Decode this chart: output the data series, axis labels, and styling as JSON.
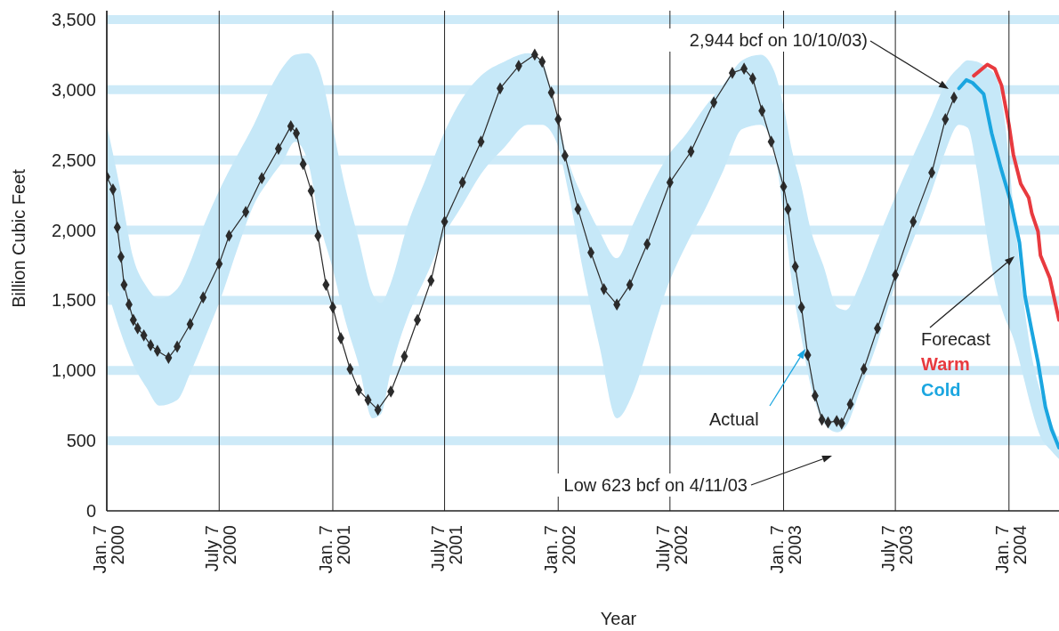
{
  "chart_data": {
    "type": "line",
    "xlabel": "Year",
    "ylabel": "Billion Cubic Feet",
    "xlim": [
      "2000-01-07",
      "2004-03-28"
    ],
    "ylim": [
      0,
      3500
    ],
    "xticks": [
      {
        "value": "2000-01-07",
        "label": "Jan. 7\n2000"
      },
      {
        "value": "2000-07-07",
        "label": "July 7\n2000"
      },
      {
        "value": "2001-01-07",
        "label": "Jan. 7\n2001"
      },
      {
        "value": "2001-07-07",
        "label": "July 7\n2001"
      },
      {
        "value": "2002-01-07",
        "label": "Jan. 7\n2002"
      },
      {
        "value": "2002-07-07",
        "label": "July 7\n2002"
      },
      {
        "value": "2003-01-07",
        "label": "Jan. 7\n2003"
      },
      {
        "value": "2003-07-07",
        "label": "July 7\n2003"
      },
      {
        "value": "2004-01-07",
        "label": "Jan. 7\n2004"
      }
    ],
    "yticks": [
      0,
      500,
      {
        "value": 1000,
        "label": "1,000"
      },
      {
        "value": 1500,
        "label": "1,500"
      },
      {
        "value": 2000,
        "label": "2,000"
      },
      {
        "value": 2500,
        "label": "2,500"
      },
      {
        "value": 3000,
        "label": "3,000"
      },
      {
        "value": 3500,
        "label": "3,500"
      }
    ],
    "grid": true,
    "series": [
      {
        "color": "#c6e8f8",
        "values": [
          null,
          null,
          null,
          null,
          null,
          null,
          null,
          null,
          null,
          null,
          null,
          null,
          null,
          null,
          null,
          null,
          null,
          null,
          null,
          null,
          null,
          null,
          null,
          null,
          null,
          null,
          null,
          null,
          null,
          null,
          null,
          null,
          null,
          null,
          null,
          null,
          null,
          null,
          null,
          null,
          null,
          null,
          null,
          null,
          null,
          null,
          null,
          null,
          null,
          null,
          null,
          null,
          null,
          null,
          null,
          null,
          null,
          null,
          null,
          null,
          null,
          null,
          null,
          null,
          null,
          null,
          null,
          null,
          null
        ],
        "x": [
          "2000-01-07",
          "2000-01-28",
          "2000-02-19",
          "2000-03-11",
          "2000-04-01",
          "2000-04-30",
          "2000-05-21",
          "2000-06-11",
          "2000-07-10",
          "2000-08-05",
          "2000-09-01",
          "2000-09-28",
          "2000-10-18",
          "2000-11-07",
          "2000-11-27",
          "2000-12-17",
          "2001-01-06",
          "2001-01-27",
          "2001-02-18",
          "2001-03-12",
          "2001-03-26",
          "2001-04-10",
          "2001-05-09",
          "2001-06-07",
          "2001-07-06",
          "2001-08-05",
          "2001-09-04",
          "2001-10-12",
          "2001-11-19",
          "2001-12-12",
          "2002-01-04",
          "2002-01-25",
          "2002-02-15",
          "2002-03-15",
          "2002-04-12",
          "2002-05-09",
          "2002-06-06",
          "2002-07-04",
          "2002-08-03",
          "2002-09-02",
          "2002-10-02",
          "2002-11-01",
          "2002-12-01",
          "2002-12-23",
          "2003-01-07",
          "2003-01-21",
          "2003-02-05",
          "2003-02-19",
          "2003-03-13",
          "2003-04-04",
          "2003-04-18",
          "2003-05-10",
          "2003-06-08",
          "2003-07-07",
          "2003-08-05",
          "2003-09-04",
          "2003-09-26",
          "2003-10-18",
          "2003-11-01",
          "2003-11-16",
          "2003-12-01",
          "2003-12-16",
          "2003-12-30",
          "2004-01-14",
          "2004-01-29",
          "2004-02-13",
          "2004-02-27",
          "2004-03-13",
          "2004-03-28"
        ],
        "upper": [
          2750,
          2310,
          1800,
          1600,
          1510,
          1580,
          1770,
          2020,
          2310,
          2530,
          2750,
          3010,
          3160,
          3250,
          3260,
          3130,
          2750,
          2310,
          1930,
          1550,
          1480,
          1610,
          2050,
          2370,
          2690,
          2940,
          3100,
          3200,
          3260,
          3200,
          2820,
          2470,
          2240,
          1990,
          1800,
          2050,
          2310,
          2530,
          2690,
          2880,
          3040,
          3210,
          3250,
          3130,
          2880,
          2560,
          2310,
          2020,
          1740,
          1450,
          1430,
          1610,
          1930,
          2240,
          2530,
          2820,
          3040,
          3160,
          3210,
          3200,
          3160,
          3100,
          2820,
          2180,
          1550,
          1100,
          850,
          660,
          500
        ],
        "lower": [
          1590,
          1290,
          1040,
          880,
          750,
          790,
          980,
          1200,
          1520,
          1860,
          2180,
          2370,
          2490,
          2630,
          2500,
          2050,
          1740,
          1360,
          1040,
          660,
          690,
          980,
          1390,
          1670,
          1960,
          2180,
          2400,
          2590,
          2750,
          2750,
          2630,
          2240,
          1740,
          1170,
          660,
          850,
          1230,
          1610,
          1900,
          2150,
          2430,
          2720,
          2750,
          2560,
          2120,
          1610,
          1230,
          910,
          630,
          560,
          600,
          850,
          1200,
          1610,
          1930,
          2280,
          2560,
          2750,
          2730,
          2430,
          1990,
          1610,
          1390,
          1230,
          980,
          720,
          530,
          440,
          370
        ]
      },
      {
        "name": "Actual",
        "color": "#2b2b2b",
        "marker": "diamond",
        "x": [
          "2000-01-07",
          "2000-01-17",
          "2000-01-24",
          "2000-01-30",
          "2000-02-04",
          "2000-02-12",
          "2000-02-19",
          "2000-02-26",
          "2000-03-07",
          "2000-03-18",
          "2000-03-29",
          "2000-04-16",
          "2000-04-30",
          "2000-05-21",
          "2000-06-11",
          "2000-07-07",
          "2000-07-23",
          "2000-08-19",
          "2000-09-14",
          "2000-10-11",
          "2000-10-31",
          "2000-11-09",
          "2000-11-20",
          "2000-12-03",
          "2000-12-14",
          "2000-12-27",
          "2001-01-07",
          "2001-01-20",
          "2001-02-04",
          "2001-02-18",
          "2001-03-05",
          "2001-03-21",
          "2001-04-11",
          "2001-05-03",
          "2001-05-24",
          "2001-06-15",
          "2001-07-07",
          "2001-08-05",
          "2001-09-04",
          "2001-10-05",
          "2001-11-04",
          "2001-11-30",
          "2001-12-12",
          "2001-12-27",
          "2002-01-07",
          "2002-01-18",
          "2002-02-08",
          "2002-03-01",
          "2002-03-22",
          "2002-04-12",
          "2002-05-03",
          "2002-05-31",
          "2002-07-07",
          "2002-08-10",
          "2002-09-16",
          "2002-10-16",
          "2002-11-04",
          "2002-11-18",
          "2002-12-03",
          "2002-12-18",
          "2003-01-07",
          "2003-01-14",
          "2003-01-26",
          "2003-02-05",
          "2003-02-15",
          "2003-02-27",
          "2003-03-10",
          "2003-03-20",
          "2003-04-03",
          "2003-04-11",
          "2003-04-25",
          "2003-05-17",
          "2003-06-08",
          "2003-07-07",
          "2003-08-05",
          "2003-09-04",
          "2003-09-26",
          "2003-10-10"
        ],
        "values": [
          2380,
          2290,
          2020,
          1810,
          1610,
          1470,
          1360,
          1300,
          1250,
          1180,
          1140,
          1090,
          1170,
          1330,
          1520,
          1760,
          1960,
          2130,
          2370,
          2580,
          2740,
          2690,
          2470,
          2280,
          1960,
          1610,
          1450,
          1230,
          1010,
          860,
          790,
          720,
          850,
          1100,
          1360,
          1640,
          2060,
          2340,
          2630,
          3010,
          3170,
          3250,
          3200,
          2980,
          2790,
          2530,
          2150,
          1840,
          1580,
          1470,
          1610,
          1900,
          2340,
          2560,
          2910,
          3120,
          3150,
          3080,
          2850,
          2630,
          2310,
          2150,
          1740,
          1450,
          1110,
          820,
          650,
          630,
          640,
          623,
          760,
          1010,
          1300,
          1680,
          2060,
          2410,
          2790,
          2944
        ]
      },
      {
        "name": "Warm",
        "color": "#e83a3f",
        "x": [
          "2003-11-11",
          "2003-12-03",
          "2003-12-15",
          "2003-12-26",
          "2004-01-07",
          "2004-01-14",
          "2004-01-26",
          "2004-02-08",
          "2004-02-13",
          "2004-02-23",
          "2004-02-27",
          "2004-03-13",
          "2004-03-28"
        ],
        "values": [
          3100,
          3180,
          3150,
          3030,
          2750,
          2540,
          2330,
          2230,
          2120,
          1990,
          1820,
          1660,
          1360
        ]
      },
      {
        "name": "Cold",
        "color": "#1ba6e0",
        "x": [
          "2003-10-18",
          "2003-10-30",
          "2003-11-09",
          "2003-11-27",
          "2003-12-10",
          "2003-12-25",
          "2004-01-10",
          "2004-01-24",
          "2004-02-02",
          "2004-02-13",
          "2004-02-23",
          "2004-03-06",
          "2004-03-16",
          "2004-03-28"
        ],
        "values": [
          3010,
          3070,
          3050,
          2970,
          2690,
          2440,
          2200,
          1910,
          1530,
          1280,
          1060,
          740,
          580,
          450
        ]
      }
    ],
    "annotations": [
      "2,944 bcf on 10/10/03)",
      "Low 623 bcf on 4/11/03",
      "Forecast"
    ]
  }
}
